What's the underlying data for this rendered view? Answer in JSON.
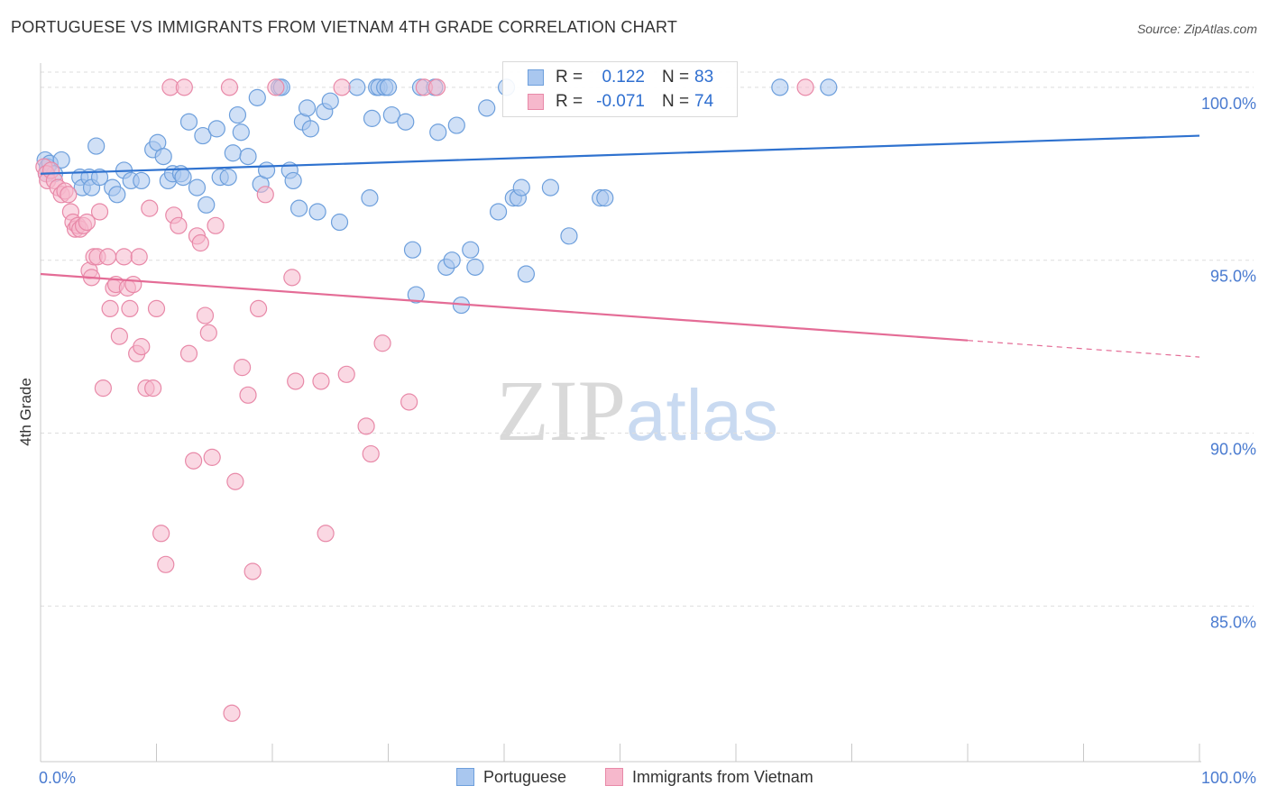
{
  "title": "PORTUGUESE VS IMMIGRANTS FROM VIETNAM 4TH GRADE CORRELATION CHART",
  "source": "Source: ZipAtlas.com",
  "watermark": {
    "zip": "ZIP",
    "atlas": "atlas"
  },
  "legend_top": {
    "rows": [
      {
        "r_label": "R =",
        "r_value": "0.122",
        "n_label": "N =",
        "n_value": "83"
      },
      {
        "r_label": "R =",
        "r_value": "-0.071",
        "n_label": "N =",
        "n_value": "74"
      }
    ]
  },
  "colors": {
    "blue_fill": "#a9c7ef",
    "blue_stroke": "#6d9fdc",
    "blue_line": "#2f72cf",
    "pink_fill": "#f6b8cc",
    "pink_stroke": "#e889a8",
    "pink_line": "#e46c96",
    "tick_label": "#4a7bd0",
    "value_text": "#2f6fd0",
    "grid": "#dedede"
  },
  "chart_data": {
    "type": "scatter",
    "title": "PORTUGUESE VS IMMIGRANTS FROM VIETNAM 4TH GRADE CORRELATION CHART",
    "xlabel": "",
    "ylabel": "4th Grade",
    "xlim": [
      0,
      100
    ],
    "ylim": [
      80.5,
      100.7
    ],
    "x_tick_labels": [
      "0.0%",
      "100.0%"
    ],
    "y_ticks": [
      85,
      90,
      95,
      100
    ],
    "y_tick_labels": [
      "85.0%",
      "90.0%",
      "95.0%",
      "100.0%"
    ],
    "grid": true,
    "legend_position": "bottom",
    "series": [
      {
        "name": "Portuguese",
        "color": "#a9c7ef",
        "trend": {
          "x": [
            0,
            100
          ],
          "y": [
            97.5,
            98.6
          ],
          "dashed_from": null
        },
        "points": [
          [
            0.4,
            97.9
          ],
          [
            0.5,
            97.5
          ],
          [
            0.6,
            97.7
          ],
          [
            0.8,
            97.8
          ],
          [
            1.2,
            97.5
          ],
          [
            1.8,
            97.9
          ],
          [
            3.4,
            97.4
          ],
          [
            3.6,
            97.1
          ],
          [
            4.2,
            97.4
          ],
          [
            4.4,
            97.1
          ],
          [
            4.8,
            98.3
          ],
          [
            5.1,
            97.4
          ],
          [
            6.2,
            97.1
          ],
          [
            6.6,
            96.9
          ],
          [
            7.2,
            97.6
          ],
          [
            7.8,
            97.3
          ],
          [
            8.7,
            97.3
          ],
          [
            9.7,
            98.2
          ],
          [
            10.1,
            98.4
          ],
          [
            10.6,
            98.0
          ],
          [
            11.0,
            97.3
          ],
          [
            11.4,
            97.5
          ],
          [
            12.1,
            97.5
          ],
          [
            12.3,
            97.4
          ],
          [
            12.8,
            99.0
          ],
          [
            13.5,
            97.1
          ],
          [
            14.0,
            98.6
          ],
          [
            14.3,
            96.6
          ],
          [
            15.2,
            98.8
          ],
          [
            15.5,
            97.4
          ],
          [
            16.2,
            97.4
          ],
          [
            16.6,
            98.1
          ],
          [
            17.0,
            99.2
          ],
          [
            17.3,
            98.7
          ],
          [
            17.9,
            98.0
          ],
          [
            18.7,
            99.7
          ],
          [
            19.0,
            97.2
          ],
          [
            19.5,
            97.6
          ],
          [
            20.6,
            100.0
          ],
          [
            20.8,
            100.0
          ],
          [
            21.5,
            97.6
          ],
          [
            21.8,
            97.3
          ],
          [
            22.3,
            96.5
          ],
          [
            22.6,
            99.0
          ],
          [
            23.0,
            99.4
          ],
          [
            23.3,
            98.8
          ],
          [
            23.9,
            96.4
          ],
          [
            24.5,
            99.3
          ],
          [
            25.0,
            99.6
          ],
          [
            25.8,
            96.1
          ],
          [
            27.3,
            100.0
          ],
          [
            28.4,
            96.8
          ],
          [
            28.6,
            99.1
          ],
          [
            29.0,
            100.0
          ],
          [
            29.2,
            100.0
          ],
          [
            29.7,
            100.0
          ],
          [
            30.0,
            100.0
          ],
          [
            30.3,
            99.2
          ],
          [
            31.5,
            99.0
          ],
          [
            32.1,
            95.3
          ],
          [
            32.4,
            94.0
          ],
          [
            32.8,
            100.0
          ],
          [
            34.0,
            100.0
          ],
          [
            34.3,
            98.7
          ],
          [
            35.0,
            94.8
          ],
          [
            35.5,
            95.0
          ],
          [
            35.9,
            98.9
          ],
          [
            36.3,
            93.7
          ],
          [
            37.1,
            95.3
          ],
          [
            37.5,
            94.8
          ],
          [
            38.5,
            99.4
          ],
          [
            39.5,
            96.4
          ],
          [
            40.2,
            100.0
          ],
          [
            40.8,
            96.8
          ],
          [
            41.2,
            96.8
          ],
          [
            41.5,
            97.1
          ],
          [
            41.9,
            94.6
          ],
          [
            44.0,
            97.1
          ],
          [
            45.6,
            95.7
          ],
          [
            48.3,
            96.8
          ],
          [
            48.7,
            96.8
          ],
          [
            63.8,
            100.0
          ],
          [
            68.0,
            100.0
          ]
        ]
      },
      {
        "name": "Immigrants from Vietnam",
        "color": "#f6b8cc",
        "trend": {
          "x": [
            0,
            100
          ],
          "y": [
            94.6,
            92.2
          ],
          "dashed_from": 80
        },
        "points": [
          [
            0.3,
            97.7
          ],
          [
            0.5,
            97.5
          ],
          [
            0.6,
            97.3
          ],
          [
            0.9,
            97.6
          ],
          [
            1.2,
            97.3
          ],
          [
            1.5,
            97.1
          ],
          [
            1.8,
            96.9
          ],
          [
            2.1,
            97.0
          ],
          [
            2.4,
            96.9
          ],
          [
            2.6,
            96.4
          ],
          [
            2.8,
            96.1
          ],
          [
            3.0,
            95.9
          ],
          [
            3.2,
            96.0
          ],
          [
            3.4,
            95.9
          ],
          [
            3.7,
            96.0
          ],
          [
            4.0,
            96.1
          ],
          [
            4.2,
            94.7
          ],
          [
            4.4,
            94.5
          ],
          [
            4.6,
            95.1
          ],
          [
            4.9,
            95.1
          ],
          [
            5.1,
            96.4
          ],
          [
            5.4,
            91.3
          ],
          [
            5.8,
            95.1
          ],
          [
            6.0,
            93.6
          ],
          [
            6.3,
            94.2
          ],
          [
            6.5,
            94.3
          ],
          [
            6.8,
            92.8
          ],
          [
            7.2,
            95.1
          ],
          [
            7.5,
            94.2
          ],
          [
            7.7,
            93.6
          ],
          [
            8.0,
            94.3
          ],
          [
            8.3,
            92.3
          ],
          [
            8.5,
            95.1
          ],
          [
            8.7,
            92.5
          ],
          [
            9.1,
            91.3
          ],
          [
            9.4,
            96.5
          ],
          [
            9.7,
            91.3
          ],
          [
            10.0,
            93.6
          ],
          [
            10.4,
            87.1
          ],
          [
            10.8,
            86.2
          ],
          [
            11.2,
            100.0
          ],
          [
            11.5,
            96.3
          ],
          [
            11.9,
            96.0
          ],
          [
            12.4,
            100.0
          ],
          [
            12.8,
            92.3
          ],
          [
            13.2,
            89.2
          ],
          [
            13.5,
            95.7
          ],
          [
            13.8,
            95.5
          ],
          [
            14.2,
            93.4
          ],
          [
            14.5,
            92.9
          ],
          [
            14.8,
            89.3
          ],
          [
            15.1,
            96.0
          ],
          [
            16.3,
            100.0
          ],
          [
            16.5,
            81.9
          ],
          [
            16.8,
            88.6
          ],
          [
            17.4,
            91.9
          ],
          [
            17.9,
            91.1
          ],
          [
            18.3,
            86.0
          ],
          [
            18.8,
            93.6
          ],
          [
            19.4,
            96.9
          ],
          [
            20.3,
            100.0
          ],
          [
            21.7,
            94.5
          ],
          [
            22.0,
            91.5
          ],
          [
            24.2,
            91.5
          ],
          [
            24.6,
            87.1
          ],
          [
            26.0,
            100.0
          ],
          [
            26.4,
            91.7
          ],
          [
            28.1,
            90.2
          ],
          [
            28.5,
            89.4
          ],
          [
            29.5,
            92.6
          ],
          [
            31.8,
            90.9
          ],
          [
            33.1,
            100.0
          ],
          [
            34.2,
            100.0
          ],
          [
            66.0,
            100.0
          ]
        ]
      }
    ]
  },
  "legend_bottom": [
    {
      "label": "Portuguese"
    },
    {
      "label": "Immigrants from Vietnam"
    }
  ]
}
